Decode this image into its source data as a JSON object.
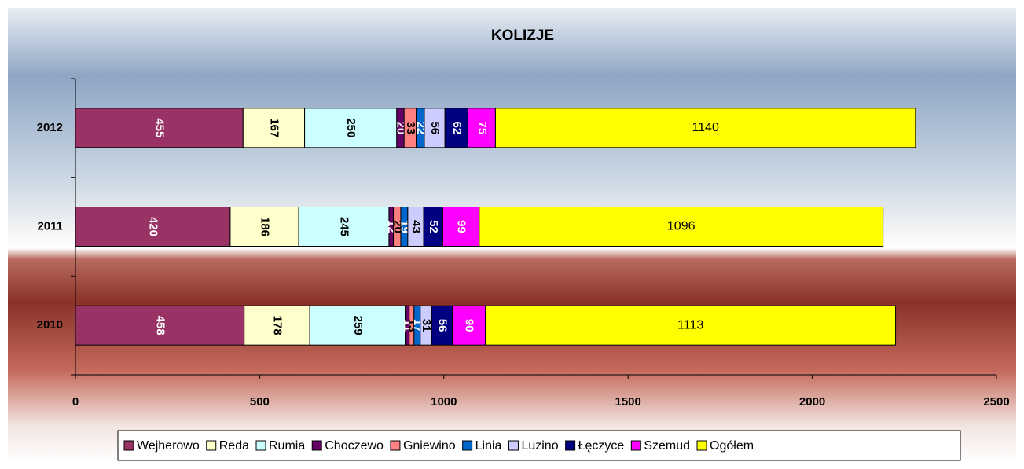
{
  "chart_data": {
    "type": "stacked_hbar",
    "title": "KOLIZJE",
    "categories": [
      "2010",
      "2011",
      "2012"
    ],
    "series": [
      {
        "name": "Wejherowo",
        "color": "#993366",
        "values": [
          458,
          420,
          455
        ]
      },
      {
        "name": "Reda",
        "color": "#ffffcc",
        "values": [
          178,
          186,
          167
        ]
      },
      {
        "name": "Rumia",
        "color": "#ccffff",
        "values": [
          259,
          245,
          250
        ]
      },
      {
        "name": "Choczewo",
        "color": "#660066",
        "values": [
          11,
          12,
          20
        ]
      },
      {
        "name": "Gniewino",
        "color": "#ff8080",
        "values": [
          13,
          20,
          33
        ]
      },
      {
        "name": "Linia",
        "color": "#0066cc",
        "values": [
          17,
          19,
          22
        ]
      },
      {
        "name": "Luzino",
        "color": "#ccccff",
        "values": [
          31,
          43,
          56
        ]
      },
      {
        "name": "Łęczyce",
        "color": "#000080",
        "values": [
          56,
          52,
          62
        ]
      },
      {
        "name": "Szemud",
        "color": "#ff00ff",
        "values": [
          90,
          99,
          75
        ]
      },
      {
        "name": "Ogółem",
        "color": "#ffff00",
        "values": [
          1113,
          1096,
          1140
        ]
      }
    ],
    "xlim": [
      0,
      2500
    ],
    "xticks": [
      0,
      500,
      1000,
      1500,
      2000,
      2500
    ],
    "legend": "bottom"
  }
}
